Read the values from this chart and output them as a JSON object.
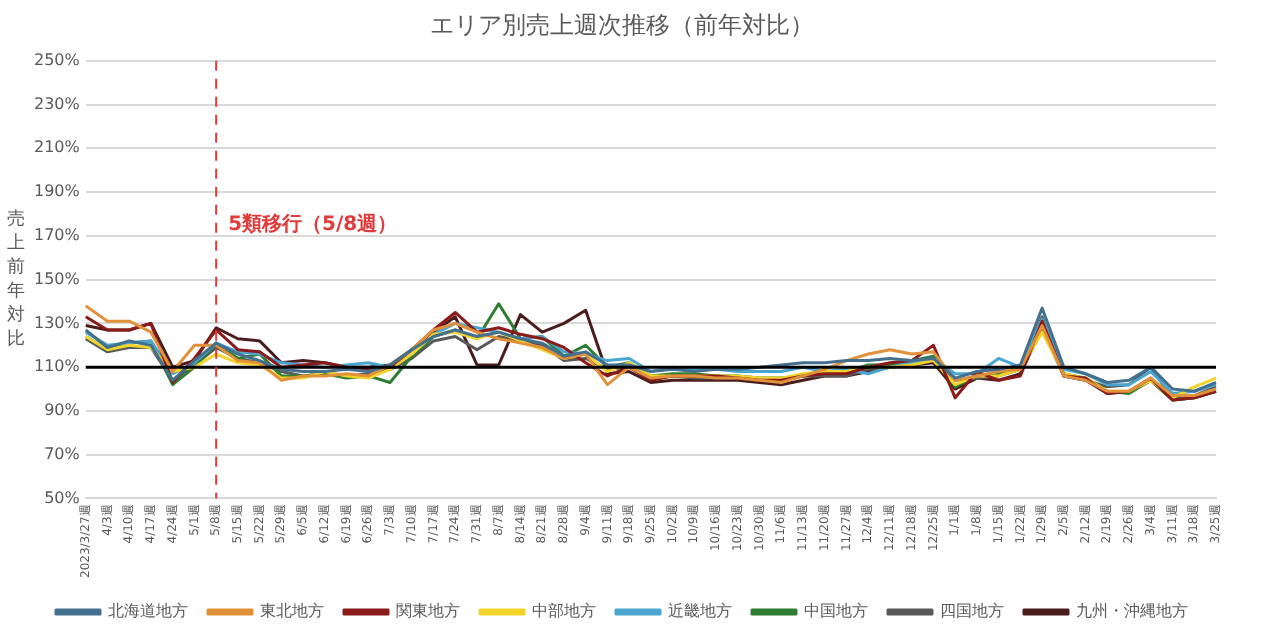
{
  "chart_data": {
    "type": "line",
    "title": "エリア別売上週次推移（前年対比）",
    "ylabel": "売上前年対比",
    "categories": [
      "2023/3/27週",
      "4/3週",
      "4/10週",
      "4/17週",
      "4/24週",
      "5/1週",
      "5/8週",
      "5/15週",
      "5/22週",
      "5/29週",
      "6/5週",
      "6/12週",
      "6/19週",
      "6/26週",
      "7/3週",
      "7/10週",
      "7/17週",
      "7/24週",
      "7/31週",
      "8/7週",
      "8/14週",
      "8/21週",
      "8/28週",
      "9/4週",
      "9/11週",
      "9/18週",
      "9/25週",
      "10/2週",
      "10/9週",
      "10/16週",
      "10/23週",
      "10/30週",
      "11/6週",
      "11/13週",
      "11/20週",
      "11/27週",
      "12/4週",
      "12/11週",
      "12/18週",
      "12/25週",
      "1/1週",
      "1/8週",
      "1/15週",
      "1/22週",
      "1/29週",
      "2/5週",
      "2/12週",
      "2/19週",
      "2/26週",
      "3/4週",
      "3/11週",
      "3/18週",
      "3/25週"
    ],
    "series": [
      {
        "name": "北海道地方",
        "color": "#44708f",
        "values": [
          127,
          119,
          122,
          120,
          104,
          113,
          121,
          116,
          113,
          109,
          108,
          108,
          109,
          108,
          111,
          118,
          124,
          127,
          124,
          126,
          123,
          121,
          115,
          117,
          111,
          111,
          108,
          109,
          108,
          109,
          109,
          110,
          111,
          112,
          112,
          113,
          113,
          114,
          113,
          114,
          105,
          108,
          109,
          111,
          137,
          110,
          107,
          103,
          104,
          110,
          100,
          99,
          103
        ]
      },
      {
        "name": "東北地方",
        "color": "#e0913a",
        "values": [
          138,
          131,
          131,
          126,
          108,
          120,
          120,
          113,
          112,
          104,
          106,
          106,
          107,
          106,
          111,
          118,
          127,
          130,
          126,
          123,
          121,
          119,
          114,
          116,
          102,
          110,
          105,
          106,
          106,
          105,
          105,
          104,
          103,
          106,
          109,
          113,
          116,
          118,
          116,
          117,
          104,
          106,
          108,
          109,
          129,
          106,
          104,
          99,
          99,
          105,
          97,
          97,
          100
        ]
      },
      {
        "name": "関東地方",
        "color": "#8b1a1a",
        "values": [
          133,
          127,
          127,
          130,
          103,
          114,
          127,
          118,
          117,
          110,
          111,
          112,
          110,
          109,
          110,
          118,
          127,
          135,
          126,
          128,
          125,
          123,
          119,
          112,
          106,
          110,
          104,
          106,
          106,
          106,
          105,
          104,
          104,
          106,
          107,
          107,
          110,
          112,
          113,
          120,
          96,
          108,
          104,
          106,
          131,
          106,
          105,
          98,
          99,
          105,
          95,
          96,
          99
        ]
      },
      {
        "name": "中部地方",
        "color": "#f2d42a",
        "values": [
          124,
          118,
          120,
          119,
          108,
          110,
          116,
          112,
          111,
          105,
          105,
          108,
          106,
          105,
          109,
          116,
          125,
          126,
          123,
          126,
          122,
          118,
          114,
          116,
          108,
          112,
          106,
          106,
          106,
          106,
          106,
          105,
          105,
          107,
          108,
          108,
          110,
          110,
          111,
          113,
          102,
          106,
          106,
          109,
          126,
          107,
          105,
          99,
          99,
          104,
          96,
          101,
          105
        ]
      },
      {
        "name": "近畿地方",
        "color": "#4aa6d0",
        "values": [
          126,
          120,
          121,
          122,
          107,
          112,
          121,
          117,
          116,
          112,
          111,
          110,
          111,
          112,
          110,
          116,
          125,
          130,
          128,
          126,
          123,
          124,
          117,
          116,
          113,
          114,
          108,
          110,
          109,
          109,
          108,
          108,
          108,
          110,
          108,
          109,
          107,
          110,
          112,
          114,
          107,
          107,
          114,
          110,
          132,
          109,
          107,
          102,
          102,
          108,
          98,
          99,
          102
        ]
      },
      {
        "name": "中国地方",
        "color": "#2e7d32",
        "values": [
          124,
          118,
          121,
          122,
          102,
          110,
          121,
          114,
          116,
          106,
          106,
          107,
          105,
          106,
          103,
          115,
          124,
          127,
          123,
          139,
          123,
          124,
          115,
          120,
          110,
          112,
          106,
          107,
          107,
          106,
          106,
          105,
          105,
          106,
          107,
          108,
          111,
          111,
          113,
          115,
          101,
          106,
          107,
          110,
          129,
          107,
          105,
          99,
          98,
          104,
          95,
          96,
          99
        ]
      },
      {
        "name": "四国地方",
        "color": "#595959",
        "values": [
          123,
          117,
          119,
          119,
          104,
          111,
          119,
          114,
          112,
          108,
          106,
          107,
          106,
          107,
          109,
          114,
          122,
          124,
          118,
          124,
          122,
          120,
          113,
          114,
          109,
          110,
          105,
          106,
          105,
          105,
          105,
          104,
          104,
          106,
          106,
          106,
          109,
          110,
          111,
          114,
          104,
          105,
          106,
          109,
          133,
          106,
          104,
          101,
          102,
          110,
          96,
          97,
          101
        ]
      },
      {
        "name": "九州・沖縄地方",
        "color": "#4a1c1c",
        "values": [
          129,
          127,
          127,
          130,
          110,
          113,
          128,
          123,
          122,
          112,
          113,
          112,
          110,
          110,
          111,
          118,
          126,
          133,
          111,
          111,
          134,
          126,
          130,
          136,
          107,
          108,
          103,
          104,
          104,
          104,
          104,
          103,
          102,
          104,
          106,
          106,
          108,
          110,
          111,
          112,
          100,
          105,
          104,
          107,
          128,
          106,
          104,
          98,
          99,
          104,
          95,
          96,
          99
        ]
      }
    ],
    "ylim": [
      50,
      250
    ],
    "yticks": [
      {
        "value": 50,
        "label": "50%"
      },
      {
        "value": 70,
        "label": "70%"
      },
      {
        "value": 90,
        "label": "90%"
      },
      {
        "value": 110,
        "label": "110%"
      },
      {
        "value": 130,
        "label": "130%"
      },
      {
        "value": 150,
        "label": "150%"
      },
      {
        "value": 170,
        "label": "170%"
      },
      {
        "value": 190,
        "label": "190%"
      },
      {
        "value": 210,
        "label": "210%"
      },
      {
        "value": 230,
        "label": "230%"
      },
      {
        "value": 250,
        "label": "250%"
      }
    ],
    "ref_lines": [
      {
        "axis": "y",
        "value": 110,
        "color": "#000000",
        "line_style": "solid"
      },
      {
        "axis": "x",
        "value": "5/8週",
        "label": "5類移行（5/8週）",
        "color": "#e03c3c",
        "line_style": "dashed"
      }
    ],
    "grid": "y",
    "legend": "bottom",
    "marker": "none",
    "line_style": "solid"
  }
}
